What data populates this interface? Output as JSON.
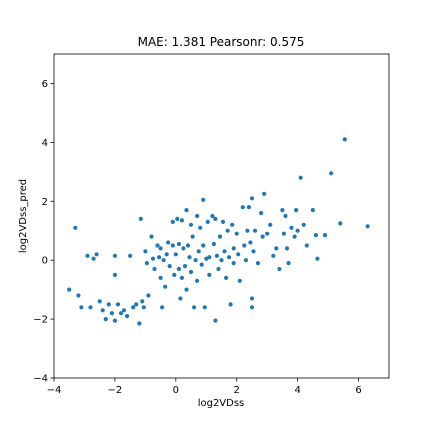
{
  "chart_data": {
    "type": "scatter",
    "title": "MAE: 1.381 Pearsonr: 0.575",
    "xlabel": "log2VDss",
    "ylabel": "log2VDss_pred",
    "xlim": [
      -4,
      7
    ],
    "ylim": [
      -4,
      7
    ],
    "xticks": [
      -4,
      -2,
      0,
      2,
      4,
      6
    ],
    "yticks": [
      -4,
      -2,
      0,
      2,
      4,
      6
    ],
    "grid": false,
    "point_color": "#1f77b4",
    "points": [
      [
        -3.5,
        -1.0
      ],
      [
        -3.3,
        1.1
      ],
      [
        -3.2,
        -1.2
      ],
      [
        -3.1,
        -1.6
      ],
      [
        -2.9,
        0.15
      ],
      [
        -2.8,
        -1.6
      ],
      [
        -2.7,
        0.05
      ],
      [
        -2.6,
        0.2
      ],
      [
        -2.5,
        -1.4
      ],
      [
        -2.4,
        -1.7
      ],
      [
        -2.3,
        -2.0
      ],
      [
        -2.2,
        -1.5
      ],
      [
        -2.1,
        -1.8
      ],
      [
        -2.0,
        -2.05
      ],
      [
        -2.0,
        0.15
      ],
      [
        -1.9,
        -1.5
      ],
      [
        -1.8,
        -1.8
      ],
      [
        -1.7,
        -1.7
      ],
      [
        -1.6,
        -1.9
      ],
      [
        -1.5,
        0.15
      ],
      [
        -1.4,
        -1.6
      ],
      [
        -1.3,
        -1.5
      ],
      [
        -1.2,
        -2.15
      ],
      [
        -1.15,
        1.4
      ],
      [
        -1.1,
        -1.4
      ],
      [
        -1.05,
        -1.6
      ],
      [
        -1.0,
        0.3
      ],
      [
        -0.95,
        -0.1
      ],
      [
        -0.9,
        -1.2
      ],
      [
        -0.8,
        0.8
      ],
      [
        -0.75,
        0.05
      ],
      [
        -0.7,
        -0.3
      ],
      [
        -0.6,
        0.5
      ],
      [
        -0.55,
        0.1
      ],
      [
        -0.5,
        -0.6
      ],
      [
        -0.5,
        0.4
      ],
      [
        -0.45,
        -1.6
      ],
      [
        -0.4,
        0.0
      ],
      [
        -0.35,
        -0.9
      ],
      [
        -0.3,
        0.2
      ],
      [
        -0.25,
        0.6
      ],
      [
        -0.2,
        -0.2
      ],
      [
        -0.1,
        0.5
      ],
      [
        -0.1,
        1.3
      ],
      [
        -0.05,
        -0.5
      ],
      [
        0.0,
        0.2
      ],
      [
        0.05,
        1.4
      ],
      [
        0.1,
        -0.3
      ],
      [
        0.1,
        0.55
      ],
      [
        0.15,
        -1.3
      ],
      [
        0.2,
        1.35
      ],
      [
        0.2,
        -0.6
      ],
      [
        0.25,
        0.4
      ],
      [
        0.3,
        -0.2
      ],
      [
        0.35,
        1.7
      ],
      [
        0.35,
        -1.0
      ],
      [
        0.4,
        0.5
      ],
      [
        0.45,
        0.1
      ],
      [
        0.5,
        1.2
      ],
      [
        0.5,
        -0.4
      ],
      [
        0.55,
        0.8
      ],
      [
        0.6,
        -1.6
      ],
      [
        0.65,
        0.0
      ],
      [
        0.7,
        1.5
      ],
      [
        0.7,
        -0.7
      ],
      [
        0.75,
        0.3
      ],
      [
        0.8,
        1.1
      ],
      [
        0.85,
        -0.15
      ],
      [
        0.9,
        2.05
      ],
      [
        0.9,
        0.5
      ],
      [
        0.95,
        -1.6
      ],
      [
        1.0,
        0.05
      ],
      [
        1.05,
        1.3
      ],
      [
        1.1,
        -0.5
      ],
      [
        1.1,
        0.1
      ],
      [
        1.2,
        1.5
      ],
      [
        1.25,
        0.55
      ],
      [
        1.3,
        1.4
      ],
      [
        1.3,
        -2.05
      ],
      [
        1.35,
        0.15
      ],
      [
        1.4,
        -0.3
      ],
      [
        1.45,
        0.8
      ],
      [
        1.5,
        0.0
      ],
      [
        1.55,
        1.3
      ],
      [
        1.6,
        0.3
      ],
      [
        1.65,
        -0.6
      ],
      [
        1.7,
        1.0
      ],
      [
        1.75,
        0.1
      ],
      [
        1.8,
        -1.5
      ],
      [
        1.85,
        1.2
      ],
      [
        1.9,
        0.4
      ],
      [
        1.9,
        -0.1
      ],
      [
        2.0,
        0.9
      ],
      [
        2.05,
        0.2
      ],
      [
        2.1,
        -0.7
      ],
      [
        2.2,
        1.8
      ],
      [
        2.25,
        0.5
      ],
      [
        2.3,
        0.0
      ],
      [
        2.35,
        1.0
      ],
      [
        2.4,
        1.8
      ],
      [
        2.45,
        0.6
      ],
      [
        2.5,
        2.1
      ],
      [
        2.5,
        -1.3
      ],
      [
        2.55,
        0.3
      ],
      [
        2.6,
        1.0
      ],
      [
        2.7,
        -0.1
      ],
      [
        2.8,
        1.6
      ],
      [
        2.85,
        0.8
      ],
      [
        2.9,
        2.25
      ],
      [
        3.0,
        0.9
      ],
      [
        3.1,
        1.2
      ],
      [
        3.2,
        0.15
      ],
      [
        3.3,
        0.4
      ],
      [
        3.4,
        -0.3
      ],
      [
        3.5,
        1.7
      ],
      [
        3.55,
        0.9
      ],
      [
        3.6,
        1.5
      ],
      [
        3.65,
        0.4
      ],
      [
        3.7,
        -0.1
      ],
      [
        3.8,
        1.1
      ],
      [
        3.9,
        0.8
      ],
      [
        3.95,
        1.7
      ],
      [
        4.0,
        1.0
      ],
      [
        4.1,
        2.8
      ],
      [
        4.2,
        1.2
      ],
      [
        4.3,
        0.5
      ],
      [
        4.5,
        1.7
      ],
      [
        4.6,
        0.85
      ],
      [
        4.65,
        0.05
      ],
      [
        4.9,
        0.85
      ],
      [
        5.1,
        2.95
      ],
      [
        5.4,
        1.25
      ],
      [
        5.55,
        4.1
      ],
      [
        6.3,
        1.15
      ],
      [
        2.5,
        -1.6
      ],
      [
        -2.0,
        -0.5
      ]
    ]
  }
}
